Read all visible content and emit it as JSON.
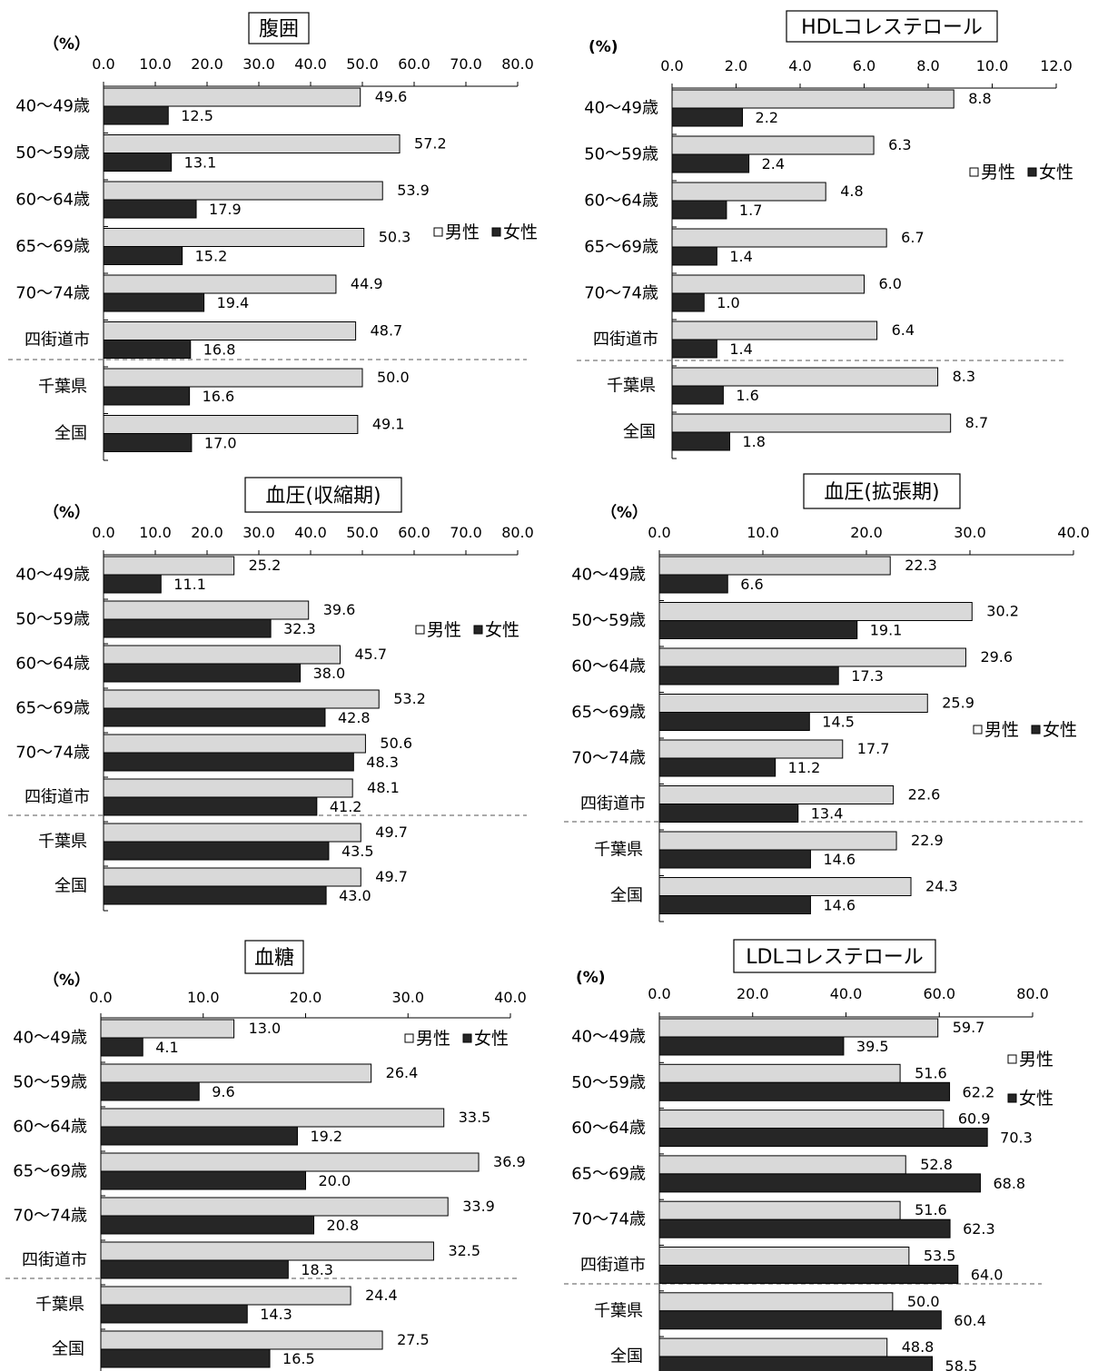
{
  "legend": {
    "male": "男性",
    "female": "女性"
  },
  "colors": {
    "male": "#d9d9d9",
    "female": "#262626",
    "axis": "#000000",
    "separator": "#555555"
  },
  "chart_data": [
    {
      "type": "bar",
      "title": "腹囲",
      "unit": "（%）",
      "categories": [
        "40～49歳",
        "50～59歳",
        "60～64歳",
        "65～69歳",
        "70～74歳",
        "四街道市",
        "千葉県",
        "全国"
      ],
      "series": [
        {
          "name": "男性",
          "values": [
            49.6,
            57.2,
            53.9,
            50.3,
            44.9,
            48.7,
            50.0,
            49.1
          ]
        },
        {
          "name": "女性",
          "values": [
            12.5,
            13.1,
            17.9,
            15.2,
            19.4,
            16.8,
            16.6,
            17.0
          ]
        }
      ],
      "ticks": [
        "0.0",
        "10.0",
        "20.0",
        "30.0",
        "40.0",
        "50.0",
        "60.0",
        "70.0",
        "80.0"
      ],
      "xlim": [
        0,
        80
      ],
      "legend_position": "right"
    },
    {
      "type": "bar",
      "title": "HDLコレステロール",
      "unit": "(%)",
      "categories": [
        "40～49歳",
        "50～59歳",
        "60～64歳",
        "65～69歳",
        "70～74歳",
        "四街道市",
        "千葉県",
        "全国"
      ],
      "series": [
        {
          "name": "男性",
          "values": [
            8.8,
            6.3,
            4.8,
            6.7,
            6.0,
            6.4,
            8.3,
            8.7
          ]
        },
        {
          "name": "女性",
          "values": [
            2.2,
            2.4,
            1.7,
            1.4,
            1.0,
            1.4,
            1.6,
            1.8
          ]
        }
      ],
      "ticks": [
        "0.0",
        "2.0",
        "4.0",
        "6.0",
        "8.0",
        "10.0",
        "12.0"
      ],
      "xlim": [
        0,
        12
      ],
      "legend_position": "right"
    },
    {
      "type": "bar",
      "title": "血圧(収縮期)",
      "unit": "（%）",
      "categories": [
        "40～49歳",
        "50～59歳",
        "60～64歳",
        "65～69歳",
        "70～74歳",
        "四街道市",
        "千葉県",
        "全国"
      ],
      "series": [
        {
          "name": "男性",
          "values": [
            25.2,
            39.6,
            45.7,
            53.2,
            50.6,
            48.1,
            49.7,
            49.7
          ]
        },
        {
          "name": "女性",
          "values": [
            11.1,
            32.3,
            38.0,
            42.8,
            48.3,
            41.2,
            43.5,
            43.0
          ]
        }
      ],
      "ticks": [
        "0.0",
        "10.0",
        "20.0",
        "30.0",
        "40.0",
        "50.0",
        "60.0",
        "70.0",
        "80.0"
      ],
      "xlim": [
        0,
        80
      ],
      "legend_position": "right"
    },
    {
      "type": "bar",
      "title": "血圧(拡張期)",
      "unit": "（%）",
      "categories": [
        "40～49歳",
        "50～59歳",
        "60～64歳",
        "65～69歳",
        "70～74歳",
        "四街道市",
        "千葉県",
        "全国"
      ],
      "series": [
        {
          "name": "男性",
          "values": [
            22.3,
            30.2,
            29.6,
            25.9,
            17.7,
            22.6,
            22.9,
            24.3
          ]
        },
        {
          "name": "女性",
          "values": [
            6.6,
            19.1,
            17.3,
            14.5,
            11.2,
            13.4,
            14.6,
            14.6
          ]
        }
      ],
      "ticks": [
        "0.0",
        "10.0",
        "20.0",
        "30.0",
        "40.0"
      ],
      "xlim": [
        0,
        40
      ],
      "legend_position": "right"
    },
    {
      "type": "bar",
      "title": "血糖",
      "unit": "（%）",
      "categories": [
        "40～49歳",
        "50～59歳",
        "60～64歳",
        "65～69歳",
        "70～74歳",
        "四街道市",
        "千葉県",
        "全国"
      ],
      "series": [
        {
          "name": "男性",
          "values": [
            13.0,
            26.4,
            33.5,
            36.9,
            33.9,
            32.5,
            24.4,
            27.5
          ]
        },
        {
          "name": "女性",
          "values": [
            4.1,
            9.6,
            19.2,
            20.0,
            20.8,
            18.3,
            14.3,
            16.5
          ]
        }
      ],
      "ticks": [
        "0.0",
        "10.0",
        "20.0",
        "30.0",
        "40.0"
      ],
      "xlim": [
        0,
        40
      ],
      "legend_position": "top-right"
    },
    {
      "type": "bar",
      "title": "LDLコレステロール",
      "unit": "(%)",
      "categories": [
        "40～49歳",
        "50～59歳",
        "60～64歳",
        "65～69歳",
        "70～74歳",
        "四街道市",
        "千葉県",
        "全国"
      ],
      "series": [
        {
          "name": "男性",
          "values": [
            59.7,
            51.6,
            60.9,
            52.8,
            51.6,
            53.5,
            50.0,
            48.8
          ]
        },
        {
          "name": "女性",
          "values": [
            39.5,
            62.2,
            70.3,
            68.8,
            62.3,
            64.0,
            60.4,
            58.5
          ]
        }
      ],
      "ticks": [
        "0.0",
        "20.0",
        "40.0",
        "60.0",
        "80.0"
      ],
      "xlim": [
        0,
        80
      ],
      "legend_position": "right"
    }
  ]
}
